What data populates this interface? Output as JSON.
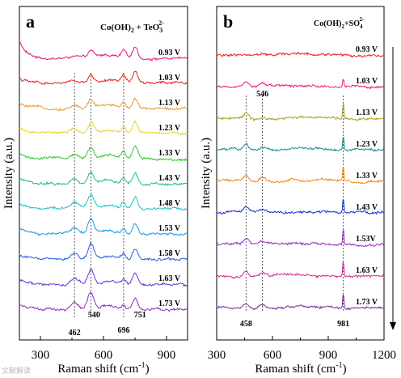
{
  "chart_data": [
    {
      "type": "line",
      "panel_letter": "a",
      "title_main": "Co(OH)",
      "title_sub": "2",
      "title_mid": " + TeO",
      "title_sub2": "3",
      "title_sup": "2-",
      "xlabel_main": "Raman shift (cm",
      "xlabel_sup": "-1",
      "xlabel_end": ")",
      "ylabel": "Intensity (a.u.)",
      "xlim": [
        200,
        1000
      ],
      "xticks": [
        300,
        600,
        900
      ],
      "xtick_labels": [
        "300",
        "600",
        "900"
      ],
      "series": [
        {
          "label": "0.93 V",
          "color": "#e8177f"
        },
        {
          "label": "1.03 V",
          "color": "#ee1c1c"
        },
        {
          "label": "1.13 V",
          "color": "#e69a2a"
        },
        {
          "label": "1.23 V",
          "color": "#e6d32a"
        },
        {
          "label": "1.33 V",
          "color": "#2fc82f"
        },
        {
          "label": "1.43 V",
          "color": "#1fba8c"
        },
        {
          "label": "1.48 V",
          "color": "#18c2c8"
        },
        {
          "label": "1.53 V",
          "color": "#1a9ce6"
        },
        {
          "label": "1.58 V",
          "color": "#2361e6"
        },
        {
          "label": "1.63 V",
          "color": "#6a35d8"
        },
        {
          "label": "1.73 V",
          "color": "#8c2ec0"
        }
      ],
      "peaks": [
        462,
        540,
        696,
        751
      ],
      "peak_labels": [
        "462",
        "540",
        "696",
        "751"
      ],
      "reference_lines": [
        462,
        540,
        696
      ]
    },
    {
      "type": "line",
      "panel_letter": "b",
      "title_main": "Co(OH)",
      "title_sub": "2",
      "title_mid": "+SO",
      "title_sub2": "4",
      "title_sup": "2-",
      "xlabel_main": "Raman shift (cm",
      "xlabel_sup": "-1",
      "xlabel_end": ")",
      "ylabel": "Intensity (a.u.)",
      "xlim": [
        300,
        1200
      ],
      "xticks": [
        300,
        600,
        900,
        1200
      ],
      "xtick_labels": [
        "300",
        "600",
        "900",
        "1200"
      ],
      "series": [
        {
          "label": "0.93 V",
          "color": "#ee1c1c"
        },
        {
          "label": "1.03 V",
          "color": "#e8177f"
        },
        {
          "label": "1.13 V",
          "color": "#a8a028"
        },
        {
          "label": "1.23 V",
          "color": "#1a8a8c"
        },
        {
          "label": "1.33 V",
          "color": "#f08c1a"
        },
        {
          "label": "1.43 V",
          "color": "#1a2ed6"
        },
        {
          "label": "1.53V",
          "color": "#9a2ec0"
        },
        {
          "label": "1.63 V",
          "color": "#d02a8a"
        },
        {
          "label": "1.73 V",
          "color": "#7a2a9a"
        }
      ],
      "peaks": [
        458,
        546,
        981
      ],
      "peak_labels": [
        "458",
        "546",
        "981"
      ],
      "reference_lines": [
        458,
        546,
        981
      ]
    }
  ],
  "watermark": "文献解读"
}
